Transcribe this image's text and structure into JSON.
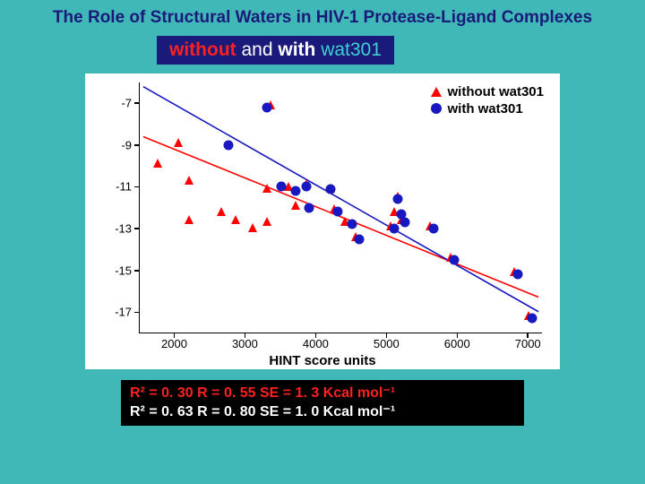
{
  "title": "The Role of Structural Waters in HIV-1 Protease-Ligand Complexes",
  "subtitle": {
    "without": "without",
    "and": " and ",
    "with": "with",
    "wat": " wat301"
  },
  "chart": {
    "type": "scatter",
    "background_color": "#ffffff",
    "xlim": [
      1500,
      7200
    ],
    "ylim": [
      -18,
      -6
    ],
    "xticks": [
      2000,
      3000,
      4000,
      5000,
      6000,
      7000
    ],
    "yticks": [
      -7,
      -9,
      -11,
      -13,
      -15,
      -17
    ],
    "xlabel": "HINT score units",
    "xlabel_fontsize": 15,
    "tick_fontsize": 13,
    "legend": {
      "position": "top-right",
      "items": [
        {
          "marker": "triangle",
          "color": "#ff0000",
          "label": "without wat301"
        },
        {
          "marker": "circle",
          "color": "#1818c0",
          "label": "with wat301"
        }
      ],
      "fontsize": 15,
      "fontweight": "bold"
    },
    "series": [
      {
        "name": "without_wat301",
        "marker": "triangle",
        "color": "#ff0000",
        "marker_size": 10,
        "points": [
          [
            1750,
            -10.0
          ],
          [
            2050,
            -9.0
          ],
          [
            2200,
            -10.8
          ],
          [
            2200,
            -12.7
          ],
          [
            2650,
            -12.3
          ],
          [
            2850,
            -12.7
          ],
          [
            3100,
            -13.1
          ],
          [
            3300,
            -12.8
          ],
          [
            3300,
            -11.2
          ],
          [
            3350,
            -7.2
          ],
          [
            3600,
            -11.1
          ],
          [
            3700,
            -12.0
          ],
          [
            3850,
            -11.0
          ],
          [
            4200,
            -11.2
          ],
          [
            4250,
            -12.2
          ],
          [
            4400,
            -12.8
          ],
          [
            4550,
            -13.5
          ],
          [
            5050,
            -13.0
          ],
          [
            5100,
            -12.3
          ],
          [
            5150,
            -11.6
          ],
          [
            5200,
            -12.7
          ],
          [
            5600,
            -13.0
          ],
          [
            5900,
            -14.5
          ],
          [
            6800,
            -15.2
          ],
          [
            7000,
            -17.3
          ]
        ],
        "fit_line": {
          "x1": 1550,
          "y1": -8.6,
          "x2": 7150,
          "y2": -16.3,
          "color": "#ff0000",
          "width": 1.6
        }
      },
      {
        "name": "with_wat301",
        "marker": "circle",
        "color": "#1818c0",
        "marker_size": 11,
        "points": [
          [
            2750,
            -9.0
          ],
          [
            3300,
            -7.2
          ],
          [
            3500,
            -11.0
          ],
          [
            3700,
            -11.2
          ],
          [
            3850,
            -11.0
          ],
          [
            3900,
            -12.0
          ],
          [
            4200,
            -11.1
          ],
          [
            4300,
            -12.2
          ],
          [
            4500,
            -12.8
          ],
          [
            4600,
            -13.5
          ],
          [
            5100,
            -13.0
          ],
          [
            5150,
            -11.6
          ],
          [
            5200,
            -12.3
          ],
          [
            5250,
            -12.7
          ],
          [
            5650,
            -13.0
          ],
          [
            5950,
            -14.5
          ],
          [
            6850,
            -15.2
          ],
          [
            7050,
            -17.3
          ]
        ],
        "fit_line": {
          "x1": 1550,
          "y1": -6.2,
          "x2": 7150,
          "y2": -17.0,
          "color": "#1818c0",
          "width": 1.6
        }
      }
    ]
  },
  "stats": {
    "row1": "R² = 0. 30 R = 0. 55  SE = 1. 3 Kcal mol⁻¹",
    "row2": "R² = 0. 63 R = 0. 80  SE = 1. 0 Kcal mol⁻¹",
    "row1_color": "#ff2020",
    "row2_color": "#ffffff",
    "background": "#000000",
    "fontsize": 16
  },
  "page_background": "#40b8b8"
}
